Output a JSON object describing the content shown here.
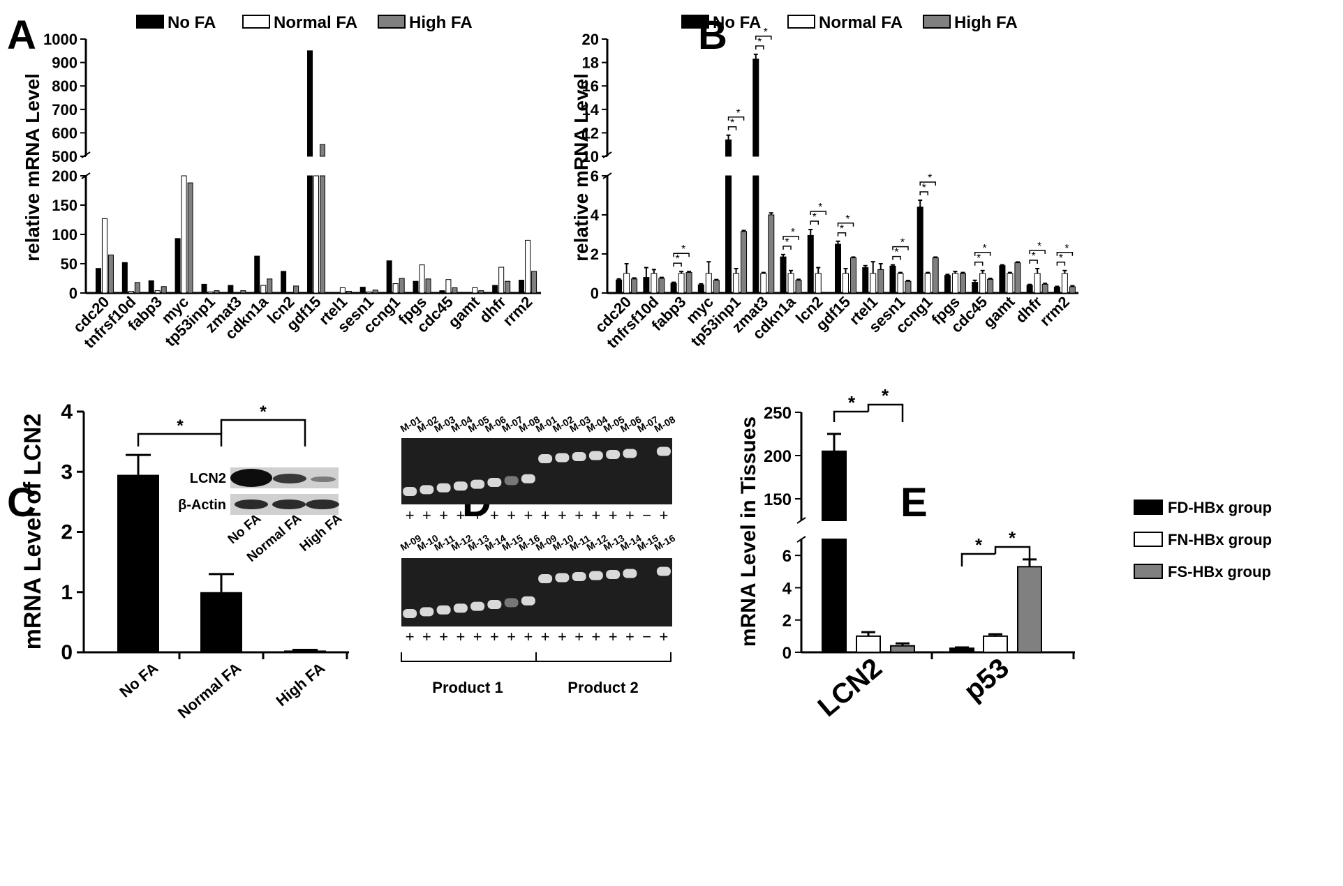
{
  "panels": {
    "A": {
      "letter": "A"
    },
    "B": {
      "letter": "B"
    },
    "C": {
      "letter": "C"
    },
    "D": {
      "letter": "D"
    },
    "E": {
      "letter": "E"
    }
  },
  "colors": {
    "no_fa": "#000000",
    "normal_fa": "#ffffff",
    "high_fa": "#808080",
    "gel_bg": "#1e1e1e",
    "band": "#e4e4e4"
  },
  "chart_data": [
    {
      "id": "A",
      "type": "bar",
      "ylabel": "relative mRNA Level",
      "broken_axis": {
        "lower": [
          0,
          200
        ],
        "upper": [
          500,
          1000
        ]
      },
      "yticks_lower": [
        "0",
        "50",
        "100",
        "150",
        "200"
      ],
      "yticks_upper": [
        "500",
        "600",
        "700",
        "800",
        "900",
        "1000"
      ],
      "categories": [
        "cdc20",
        "tnfrsf10d",
        "fabp3",
        "myc",
        "tp53inp1",
        "zmat3",
        "cdkn1a",
        "lcn2",
        "gdf15",
        "rtel1",
        "sesn1",
        "ccng1",
        "fpgs",
        "cdc45",
        "gamt",
        "dhfr",
        "rrm2"
      ],
      "series": [
        {
          "name": "No FA",
          "values": [
            42,
            52,
            21,
            93,
            15,
            13,
            63,
            37,
            950,
            1,
            10,
            55,
            20,
            4,
            1,
            13,
            22
          ]
        },
        {
          "name": "Normal FA",
          "values": [
            127,
            3,
            4,
            200,
            2,
            1,
            13,
            1,
            200,
            9,
            2,
            16,
            48,
            23,
            9,
            44,
            90
          ]
        },
        {
          "name": "High FA",
          "values": [
            65,
            18,
            11,
            188,
            4,
            4,
            24,
            12,
            550,
            3,
            5,
            25,
            24,
            9,
            4,
            20,
            37
          ]
        }
      ]
    },
    {
      "id": "B",
      "type": "bar",
      "ylabel": "relative mRNA Level",
      "broken_axis": {
        "lower": [
          0,
          6
        ],
        "upper": [
          10,
          20
        ]
      },
      "yticks_lower": [
        "0",
        "2",
        "4",
        "6"
      ],
      "yticks_upper": [
        "10",
        "12",
        "14",
        "16",
        "18",
        "20"
      ],
      "categories": [
        "cdc20",
        "tnfrsf10d",
        "fabp3",
        "myc",
        "tp53inp1",
        "zmat3",
        "cdkn1a",
        "lcn2",
        "gdf15",
        "rtel1",
        "sesn1",
        "ccng1",
        "fpgs",
        "cdc45",
        "gamt",
        "dhfr",
        "rrm2"
      ],
      "series": [
        {
          "name": "No FA",
          "values": [
            0.67,
            0.8,
            0.5,
            0.42,
            11.4,
            18.3,
            1.85,
            2.95,
            2.5,
            1.3,
            1.38,
            4.4,
            0.9,
            0.55,
            1.4,
            0.4,
            0.3
          ],
          "errors": [
            0.05,
            0.5,
            0.05,
            0.05,
            0.4,
            0.4,
            0.12,
            0.3,
            0.15,
            0.1,
            0.06,
            0.35,
            0.05,
            0.1,
            0.04,
            0.04,
            0.04
          ]
        },
        {
          "name": "Normal FA",
          "values": [
            1,
            1,
            1,
            1,
            1,
            1,
            1,
            1,
            1,
            1,
            1,
            1,
            1,
            1,
            1,
            1,
            1
          ],
          "errors": [
            0.5,
            0.2,
            0.1,
            0.6,
            0.25,
            0.05,
            0.15,
            0.3,
            0.25,
            0.6,
            0.05,
            0.05,
            0.1,
            0.15,
            0.05,
            0.25,
            0.15
          ]
        },
        {
          "name": "High FA",
          "values": [
            0.72,
            0.75,
            1.05,
            0.65,
            3.15,
            4.0,
            0.65,
            0.0,
            1.8,
            1.2,
            0.6,
            1.8,
            1.0,
            0.7,
            1.55,
            0.45,
            0.32
          ],
          "errors": [
            0.05,
            0.05,
            0.05,
            0.04,
            0.05,
            0.1,
            0.05,
            0.0,
            0.04,
            0.3,
            0.04,
            0.04,
            0.05,
            0.05,
            0.04,
            0.04,
            0.05
          ]
        }
      ],
      "significance_marker": "*"
    },
    {
      "id": "C",
      "type": "bar",
      "ylabel": "mRNA Level of LCN2",
      "categories": [
        "No FA",
        "Normal FA",
        "High FA"
      ],
      "values": [
        2.95,
        1.0,
        0.03
      ],
      "errors": [
        0.33,
        0.3,
        0.01
      ],
      "ylim": [
        0,
        4
      ],
      "yticks": [
        "0",
        "1",
        "2",
        "3",
        "4"
      ],
      "significance_marker": "*",
      "blot_rows": [
        "LCN2",
        "β-Actin"
      ],
      "blot_lanes": [
        "No FA",
        "Normal FA",
        "High FA"
      ]
    },
    {
      "id": "E",
      "type": "bar",
      "ylabel": "mRNA Level in Tissues",
      "broken_axis": {
        "lower": [
          0,
          7
        ],
        "upper": [
          125,
          250
        ]
      },
      "yticks_lower": [
        "0",
        "2",
        "4",
        "6"
      ],
      "yticks_upper": [
        "150",
        "200",
        "250"
      ],
      "categories": [
        "LCN2",
        "p53"
      ],
      "series": [
        {
          "name": "FD-HBx group",
          "values": [
            205,
            0.25
          ],
          "errors": [
            20,
            0.05
          ]
        },
        {
          "name": "FN-HBx group",
          "values": [
            1,
            1
          ],
          "errors": [
            0.25,
            0.12
          ]
        },
        {
          "name": "FS-HBx group",
          "values": [
            0.4,
            5.3
          ],
          "errors": [
            0.15,
            0.45
          ]
        }
      ],
      "significance_marker": "*"
    }
  ],
  "gel": {
    "id": "D",
    "top_lanes": [
      "M-01",
      "M-02",
      "M-03",
      "M-04",
      "M-05",
      "M-06",
      "M-07",
      "M-08",
      "M-01",
      "M-02",
      "M-03",
      "M-04",
      "M-05",
      "M-06",
      "M-07",
      "M-08"
    ],
    "bottom_lanes": [
      "M-09",
      "M-10",
      "M-11",
      "M-12",
      "M-13",
      "M-14",
      "M-15",
      "M-16",
      "M-09",
      "M-10",
      "M-11",
      "M-12",
      "M-13",
      "M-14",
      "M-15",
      "M-16"
    ],
    "top_signs": [
      "+",
      "+",
      "+",
      "+",
      "+",
      "+",
      "+",
      "+",
      "+",
      "+",
      "+",
      "+",
      "+",
      "+",
      "−",
      "+"
    ],
    "bottom_signs": [
      "+",
      "+",
      "+",
      "+",
      "+",
      "+",
      "+",
      "+",
      "+",
      "+",
      "+",
      "+",
      "+",
      "+",
      "−",
      "+"
    ],
    "products": [
      "Product 1",
      "Product 2"
    ]
  }
}
